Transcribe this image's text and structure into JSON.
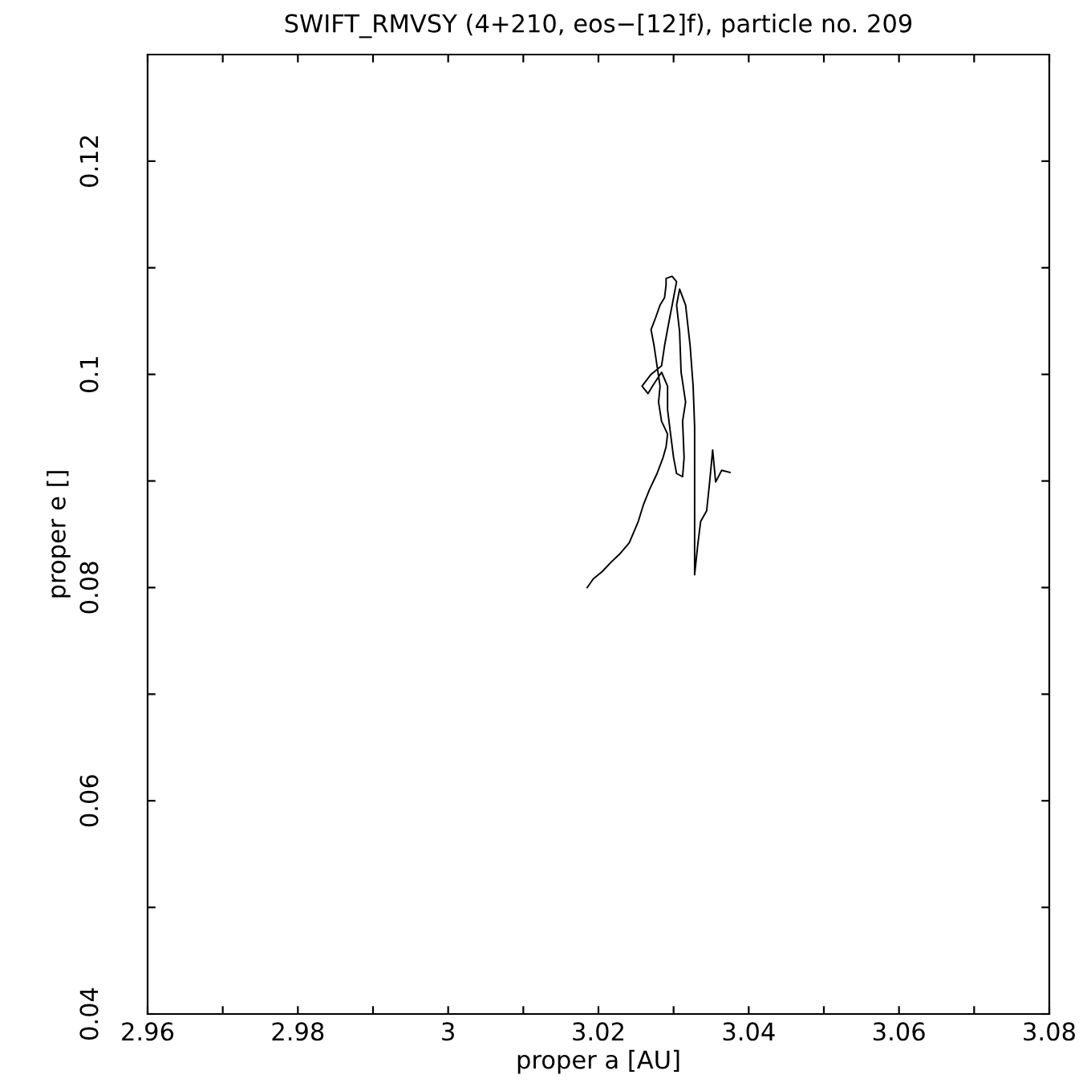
{
  "chart_data": {
    "type": "line",
    "title": "SWIFT_RMVSY (4+210, eos−[12]f), particle no. 209",
    "xlabel": "proper a [AU]",
    "ylabel": "proper e []",
    "series": [
      {
        "color": "#000000",
        "x": [
          3.0185,
          3.0193,
          3.0205,
          3.0217,
          3.0229,
          3.0241,
          3.0253,
          3.026,
          3.0268,
          3.0278,
          3.0286,
          3.029,
          3.0292,
          3.0284,
          3.028,
          3.0282,
          3.0278,
          3.0274,
          3.027,
          3.0276,
          3.0282,
          3.0288,
          3.029,
          3.029,
          3.0298,
          3.0304,
          3.03,
          3.0294,
          3.0288,
          3.0284,
          3.027,
          3.0258,
          3.0266,
          3.0272,
          3.0284,
          3.0292,
          3.0292,
          3.0296,
          3.03,
          3.0304,
          3.0312,
          3.0314,
          3.0312,
          3.0316,
          3.031,
          3.0308,
          3.0304,
          3.0308,
          3.0316,
          3.0322,
          3.0326,
          3.0328,
          3.0328,
          3.0328,
          3.0328,
          3.0332,
          3.0336,
          3.0344,
          3.0348,
          3.0352,
          3.0356,
          3.0364,
          3.0375
        ],
        "values": [
          0.08,
          0.0808,
          0.0815,
          0.0824,
          0.0832,
          0.0842,
          0.0862,
          0.0878,
          0.0892,
          0.0907,
          0.0922,
          0.0932,
          0.0944,
          0.0956,
          0.0974,
          0.0989,
          0.1008,
          0.1027,
          0.1042,
          0.1053,
          0.1065,
          0.1072,
          0.1084,
          0.109,
          0.1092,
          0.1087,
          0.1072,
          0.105,
          0.1027,
          0.1008,
          0.1,
          0.0989,
          0.0982,
          0.0989,
          0.1002,
          0.0989,
          0.0967,
          0.0944,
          0.0922,
          0.0907,
          0.0904,
          0.0922,
          0.0956,
          0.0974,
          0.1002,
          0.104,
          0.1065,
          0.108,
          0.1065,
          0.1027,
          0.0989,
          0.0951,
          0.0899,
          0.0839,
          0.0812,
          0.0839,
          0.0862,
          0.0872,
          0.0899,
          0.0929,
          0.0899,
          0.091,
          0.0908
        ]
      }
    ],
    "xlim": [
      2.96,
      3.08
    ],
    "ylim": [
      0.04,
      0.13
    ],
    "xticks": [
      2.96,
      {
        "value": 2.97,
        "label": null
      },
      2.98,
      {
        "value": 2.99,
        "label": null
      },
      3,
      {
        "value": 3.01,
        "label": null
      },
      3.02,
      {
        "value": 3.03,
        "label": null
      },
      3.04,
      {
        "value": 3.05,
        "label": null
      },
      3.06,
      {
        "value": 3.07,
        "label": null
      },
      3.08
    ],
    "yticks": [
      0.04,
      {
        "value": 0.05,
        "label": null
      },
      0.06,
      {
        "value": 0.07,
        "label": null
      },
      0.08,
      {
        "value": 0.09,
        "label": null
      },
      0.1,
      {
        "value": 0.11,
        "label": null
      },
      0.12
    ],
    "grid": false,
    "legend": false
  }
}
